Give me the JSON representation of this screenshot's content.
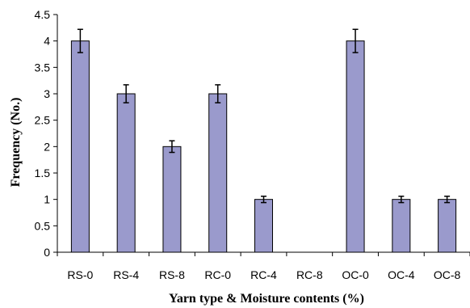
{
  "chart_data": {
    "type": "bar",
    "title": "",
    "xlabel": "Yarn type & Moisture contents (%)",
    "ylabel": "Frequency (No.)",
    "categories": [
      "RS-0",
      "RS-4",
      "RS-8",
      "RC-0",
      "RC-4",
      "RC-8",
      "OC-0",
      "OC-4",
      "OC-8"
    ],
    "values": [
      4,
      3,
      2,
      3,
      1,
      0,
      4,
      1,
      1
    ],
    "errors": [
      0.22,
      0.17,
      0.11,
      0.17,
      0.06,
      0,
      0.22,
      0.06,
      0.06
    ],
    "ylim": [
      0,
      4.5
    ],
    "yticks": [
      "0",
      "0.5",
      "1",
      "1.5",
      "2",
      "2.5",
      "3",
      "3.5",
      "4",
      "4.5"
    ],
    "grid": false,
    "legend": "none",
    "bar_color": "#9a9acc",
    "bar_edge_color": "#000000"
  }
}
